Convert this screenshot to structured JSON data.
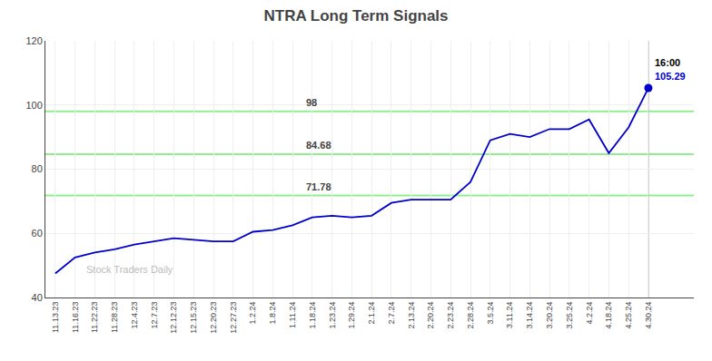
{
  "chart_data": {
    "type": "line",
    "title": "NTRA Long Term Signals",
    "categories": [
      "11.13.23",
      "11.16.23",
      "11.22.23",
      "11.28.23",
      "12.4.23",
      "12.7.23",
      "12.12.23",
      "12.15.23",
      "12.20.23",
      "12.27.23",
      "1.2.24",
      "1.8.24",
      "1.11.24",
      "1.18.24",
      "1.23.24",
      "1.29.24",
      "2.1.24",
      "2.7.24",
      "2.13.24",
      "2.20.24",
      "2.23.24",
      "2.28.24",
      "3.5.24",
      "3.11.24",
      "3.14.24",
      "3.20.24",
      "3.25.24",
      "4.2.24",
      "4.18.24",
      "4.25.24",
      "4.30.24"
    ],
    "values": [
      47.5,
      52.5,
      54.0,
      55.0,
      56.5,
      57.5,
      58.5,
      58.0,
      57.5,
      57.5,
      60.5,
      61.0,
      62.5,
      65.0,
      65.5,
      65.0,
      65.5,
      69.5,
      70.5,
      70.5,
      70.5,
      76.0,
      89.0,
      91.0,
      90.0,
      92.5,
      92.5,
      95.5,
      85.0,
      93.0,
      105.29
    ],
    "color": "#0000CC",
    "hlines": [
      {
        "y": 71.78,
        "label": "71.78",
        "color": "#90EE90"
      },
      {
        "y": 84.68,
        "label": "84.68",
        "color": "#90EE90"
      },
      {
        "y": 98.0,
        "label": "98",
        "color": "#90EE90"
      }
    ],
    "annotations": [
      "16:00",
      "105.29",
      "Stock Traders Daily"
    ],
    "ylim": [
      40,
      120
    ],
    "yticks": [
      40,
      60,
      80,
      100,
      120
    ],
    "grid": true
  }
}
